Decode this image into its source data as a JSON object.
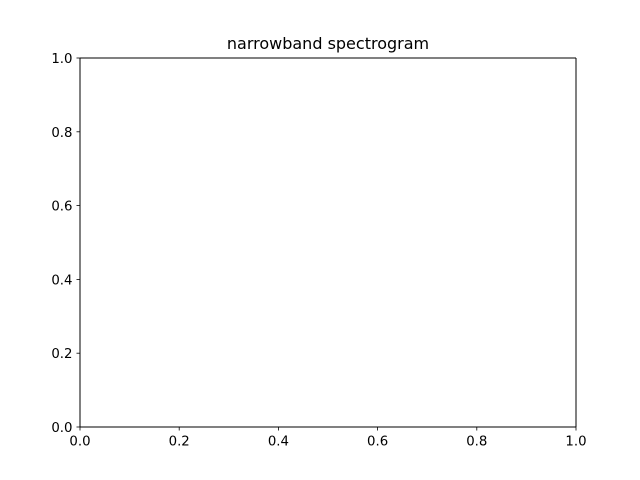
{
  "chart_data": {
    "type": "heatmap",
    "title": "narrowband spectrogram",
    "xlabel": "",
    "ylabel": "",
    "xlim": [
      0.0,
      1.0
    ],
    "ylim": [
      0.0,
      1.0
    ],
    "x_ticks": [
      "0.0",
      "0.2",
      "0.4",
      "0.6",
      "0.8",
      "1.0"
    ],
    "y_ticks": [
      "0.0",
      "0.2",
      "0.4",
      "0.6",
      "0.8",
      "1.0"
    ],
    "grid": false,
    "series": [],
    "colors": {
      "background": "#ffffff",
      "axes": "#000000",
      "text": "#000000"
    }
  }
}
